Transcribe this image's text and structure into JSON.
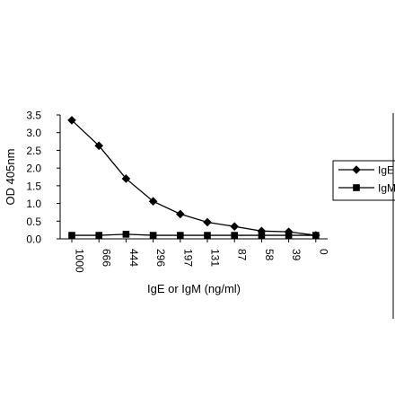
{
  "chart_data": {
    "type": "line",
    "title": "",
    "xlabel": "IgE or IgM  (ng/ml)",
    "ylabel": "OD 405nm",
    "categories": [
      "1000",
      "666",
      "444",
      "296",
      "197",
      "131",
      "87",
      "58",
      "39",
      "0"
    ],
    "ylim": [
      0,
      3.5
    ],
    "y_ticks": [
      "0.0",
      "0.5",
      "1.0",
      "1.5",
      "2.0",
      "2.5",
      "3.0",
      "3.5"
    ],
    "grid": false,
    "legend_position": "right",
    "series": [
      {
        "name": "IgE",
        "marker": "diamond",
        "color": "#000000",
        "values": [
          3.35,
          2.63,
          1.7,
          1.06,
          0.7,
          0.47,
          0.35,
          0.22,
          0.2,
          0.1
        ]
      },
      {
        "name": "IgM",
        "marker": "square",
        "color": "#000000",
        "values": [
          0.1,
          0.1,
          0.13,
          0.1,
          0.1,
          0.1,
          0.1,
          0.1,
          0.1,
          0.1
        ]
      }
    ]
  }
}
